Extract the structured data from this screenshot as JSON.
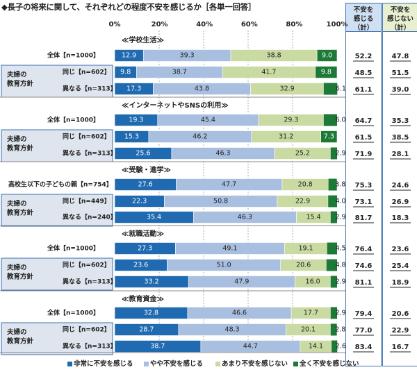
{
  "title": "◆長子の将来に関して、それぞれどの程度不安を感じるか［各単一回答］",
  "column_headers": {
    "anxious": [
      "不安を",
      "感じる",
      "（計）"
    ],
    "not_anxious": [
      "不安を",
      "感じない",
      "（計）"
    ]
  },
  "axis_ticks": [
    "0%",
    "20%",
    "40%",
    "60%",
    "80%",
    "100%"
  ],
  "colors": {
    "very": "#1f6ab0",
    "somewhat": "#a9bfe0",
    "notmuch": "#c9dba2",
    "notatall": "#1c7a36",
    "group_bg": "#dfe5ee"
  },
  "group_label": [
    "夫婦の",
    "教育方針"
  ],
  "chart_data": {
    "type": "bar",
    "orientation": "horizontal-stacked-100",
    "xlim": [
      0,
      100
    ],
    "legend": [
      "非常に不安を感じる",
      "やや不安を感じる",
      "あまり不安を感じない",
      "全く不安を感じない"
    ],
    "legend_placement": "bottom",
    "sections": [
      {
        "title": "≪学校生活≫",
        "rows": [
          {
            "label": "全体【n=1000】",
            "values": [
              12.9,
              39.3,
              38.8,
              9.0
            ],
            "anxious": "52.2",
            "not_anxious": "47.8"
          },
          {
            "label": "同じ【n=602】",
            "values": [
              9.8,
              38.7,
              41.7,
              9.8
            ],
            "anxious": "48.5",
            "not_anxious": "51.5"
          },
          {
            "label": "異なる【n=313】",
            "values": [
              17.3,
              43.8,
              32.9,
              6.1
            ],
            "anxious": "61.1",
            "not_anxious": "39.0"
          }
        ]
      },
      {
        "title": "≪インターネットやSNSの利用≫",
        "rows": [
          {
            "label": "全体【n=1000】",
            "values": [
              19.3,
              45.4,
              29.3,
              6.0
            ],
            "anxious": "64.7",
            "not_anxious": "35.3"
          },
          {
            "label": "同じ【n=602】",
            "values": [
              15.3,
              46.2,
              31.2,
              7.3
            ],
            "anxious": "61.5",
            "not_anxious": "38.5"
          },
          {
            "label": "異なる【n=313】",
            "values": [
              25.6,
              46.3,
              25.2,
              2.9
            ],
            "anxious": "71.9",
            "not_anxious": "28.1"
          }
        ]
      },
      {
        "title": "≪受験・進学≫",
        "rows": [
          {
            "label": "高校生以下の子どもの親【n=754】",
            "values": [
              27.6,
              47.7,
              20.8,
              3.8
            ],
            "anxious": "75.3",
            "not_anxious": "24.6"
          },
          {
            "label": "同じ【n=449】",
            "values": [
              22.3,
              50.8,
              22.9,
              4.0
            ],
            "anxious": "73.1",
            "not_anxious": "26.9"
          },
          {
            "label": "異なる【n=240】",
            "values": [
              35.4,
              46.3,
              15.4,
              2.9
            ],
            "anxious": "81.7",
            "not_anxious": "18.3"
          }
        ]
      },
      {
        "title": "≪就職活動≫",
        "rows": [
          {
            "label": "全体【n=1000】",
            "values": [
              27.3,
              49.1,
              19.1,
              4.5
            ],
            "anxious": "76.4",
            "not_anxious": "23.6"
          },
          {
            "label": "同じ【n=602】",
            "values": [
              23.6,
              51.0,
              20.6,
              4.8
            ],
            "anxious": "74.6",
            "not_anxious": "25.4"
          },
          {
            "label": "異なる【n=313】",
            "values": [
              33.2,
              47.9,
              16.0,
              2.9
            ],
            "anxious": "81.1",
            "not_anxious": "18.9"
          }
        ]
      },
      {
        "title": "≪教育資金≫",
        "rows": [
          {
            "label": "全体【n=1000】",
            "values": [
              32.8,
              46.6,
              17.7,
              2.9
            ],
            "anxious": "79.4",
            "not_anxious": "20.6"
          },
          {
            "label": "同じ【n=602】",
            "values": [
              28.7,
              48.3,
              20.1,
              2.8
            ],
            "anxious": "77.0",
            "not_anxious": "22.9"
          },
          {
            "label": "異なる【n=313】",
            "values": [
              38.7,
              44.7,
              14.1,
              2.6
            ],
            "anxious": "83.4",
            "not_anxious": "16.7"
          }
        ]
      }
    ]
  }
}
